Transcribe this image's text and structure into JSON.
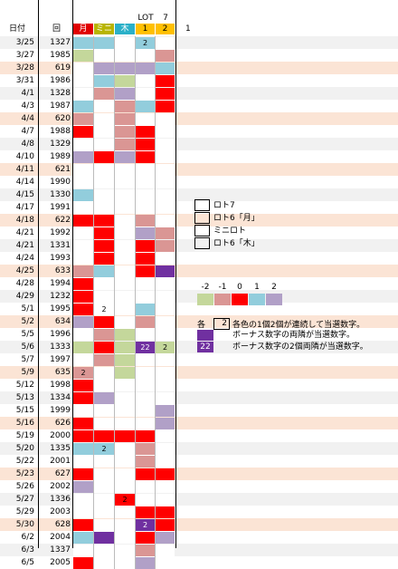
{
  "header": {
    "date_label": "日付",
    "round_label": "回",
    "columns": [
      "月",
      "ミニ",
      "木",
      "1",
      "2"
    ],
    "column_colors": [
      "#e00000",
      "#b8b400",
      "#2ab0c8",
      "#ffc000",
      "#ffc000"
    ],
    "lot_label": "LOT",
    "seven_label": "7",
    "extra_col_label": "1"
  },
  "colors": {
    "0": "#ffffff",
    "1": "#ff0000",
    "2": "#da9694",
    "3": "#c4d79b",
    "4": "#92cddc",
    "5": "#b1a0c7",
    "6": "#7030a0"
  },
  "rows": [
    {
      "date": "3/25",
      "round": "1327",
      "hl": false,
      "cells": [
        [
          4,
          ""
        ],
        [
          4,
          ""
        ],
        [
          0,
          ""
        ],
        [
          4,
          "2"
        ],
        [
          0,
          ""
        ]
      ]
    },
    {
      "date": "3/27",
      "round": "1985",
      "hl": false,
      "cells": [
        [
          3,
          ""
        ],
        [
          0,
          ""
        ],
        [
          0,
          ""
        ],
        [
          0,
          ""
        ],
        [
          2,
          ""
        ]
      ]
    },
    {
      "date": "3/28",
      "round": "619",
      "hl": true,
      "cells": [
        [
          0,
          ""
        ],
        [
          5,
          ""
        ],
        [
          5,
          ""
        ],
        [
          5,
          ""
        ],
        [
          4,
          ""
        ]
      ]
    },
    {
      "date": "3/31",
      "round": "1986",
      "hl": false,
      "cells": [
        [
          0,
          ""
        ],
        [
          4,
          ""
        ],
        [
          3,
          ""
        ],
        [
          0,
          ""
        ],
        [
          1,
          ""
        ]
      ]
    },
    {
      "date": "4/1",
      "round": "1328",
      "hl": false,
      "cells": [
        [
          0,
          ""
        ],
        [
          2,
          ""
        ],
        [
          5,
          ""
        ],
        [
          0,
          ""
        ],
        [
          1,
          ""
        ]
      ]
    },
    {
      "date": "4/3",
      "round": "1987",
      "hl": false,
      "cells": [
        [
          4,
          ""
        ],
        [
          0,
          ""
        ],
        [
          2,
          ""
        ],
        [
          4,
          ""
        ],
        [
          1,
          ""
        ]
      ]
    },
    {
      "date": "4/4",
      "round": "620",
      "hl": true,
      "cells": [
        [
          2,
          ""
        ],
        [
          0,
          ""
        ],
        [
          2,
          ""
        ],
        [
          0,
          ""
        ],
        [
          0,
          ""
        ]
      ]
    },
    {
      "date": "4/7",
      "round": "1988",
      "hl": false,
      "cells": [
        [
          1,
          ""
        ],
        [
          0,
          ""
        ],
        [
          2,
          ""
        ],
        [
          1,
          ""
        ],
        [
          0,
          ""
        ]
      ]
    },
    {
      "date": "4/8",
      "round": "1329",
      "hl": false,
      "cells": [
        [
          0,
          ""
        ],
        [
          0,
          ""
        ],
        [
          2,
          ""
        ],
        [
          1,
          ""
        ],
        [
          0,
          ""
        ]
      ]
    },
    {
      "date": "4/10",
      "round": "1989",
      "hl": false,
      "cells": [
        [
          5,
          ""
        ],
        [
          1,
          ""
        ],
        [
          5,
          ""
        ],
        [
          1,
          ""
        ],
        [
          0,
          ""
        ]
      ]
    },
    {
      "date": "4/11",
      "round": "621",
      "hl": true,
      "cells": [
        [
          0,
          ""
        ],
        [
          0,
          ""
        ],
        [
          0,
          ""
        ],
        [
          0,
          ""
        ],
        [
          0,
          ""
        ]
      ]
    },
    {
      "date": "4/14",
      "round": "1990",
      "hl": false,
      "cells": [
        [
          0,
          ""
        ],
        [
          0,
          ""
        ],
        [
          0,
          ""
        ],
        [
          0,
          ""
        ],
        [
          0,
          ""
        ]
      ]
    },
    {
      "date": "4/15",
      "round": "1330",
      "hl": false,
      "cells": [
        [
          4,
          ""
        ],
        [
          0,
          ""
        ],
        [
          0,
          ""
        ],
        [
          0,
          ""
        ],
        [
          0,
          ""
        ]
      ]
    },
    {
      "date": "4/17",
      "round": "1991",
      "hl": false,
      "cells": [
        [
          0,
          ""
        ],
        [
          0,
          ""
        ],
        [
          0,
          ""
        ],
        [
          0,
          ""
        ],
        [
          0,
          ""
        ]
      ]
    },
    {
      "date": "4/18",
      "round": "622",
      "hl": true,
      "cells": [
        [
          1,
          ""
        ],
        [
          1,
          ""
        ],
        [
          0,
          ""
        ],
        [
          2,
          ""
        ],
        [
          0,
          ""
        ]
      ]
    },
    {
      "date": "4/21",
      "round": "1992",
      "hl": false,
      "cells": [
        [
          0,
          ""
        ],
        [
          1,
          ""
        ],
        [
          0,
          ""
        ],
        [
          5,
          ""
        ],
        [
          2,
          ""
        ]
      ]
    },
    {
      "date": "4/21",
      "round": "1331",
      "hl": false,
      "cells": [
        [
          0,
          ""
        ],
        [
          1,
          ""
        ],
        [
          0,
          ""
        ],
        [
          1,
          ""
        ],
        [
          2,
          ""
        ]
      ]
    },
    {
      "date": "4/24",
      "round": "1993",
      "hl": false,
      "cells": [
        [
          0,
          ""
        ],
        [
          1,
          ""
        ],
        [
          0,
          ""
        ],
        [
          1,
          ""
        ],
        [
          0,
          ""
        ]
      ]
    },
    {
      "date": "4/25",
      "round": "633",
      "hl": true,
      "cells": [
        [
          2,
          ""
        ],
        [
          4,
          ""
        ],
        [
          0,
          ""
        ],
        [
          1,
          ""
        ],
        [
          6,
          ""
        ]
      ]
    },
    {
      "date": "4/28",
      "round": "1994",
      "hl": false,
      "cells": [
        [
          1,
          ""
        ],
        [
          0,
          ""
        ],
        [
          0,
          ""
        ],
        [
          0,
          ""
        ],
        [
          0,
          ""
        ]
      ]
    },
    {
      "date": "4/29",
      "round": "1232",
      "hl": false,
      "cells": [
        [
          1,
          ""
        ],
        [
          0,
          ""
        ],
        [
          0,
          ""
        ],
        [
          0,
          ""
        ],
        [
          0,
          ""
        ]
      ]
    },
    {
      "date": "5/1",
      "round": "1995",
      "hl": false,
      "cells": [
        [
          1,
          ""
        ],
        [
          0,
          "2"
        ],
        [
          0,
          ""
        ],
        [
          4,
          ""
        ],
        [
          0,
          ""
        ]
      ]
    },
    {
      "date": "5/2",
      "round": "634",
      "hl": true,
      "cells": [
        [
          5,
          ""
        ],
        [
          1,
          ""
        ],
        [
          0,
          ""
        ],
        [
          2,
          ""
        ],
        [
          0,
          ""
        ]
      ]
    },
    {
      "date": "5/5",
      "round": "1996",
      "hl": false,
      "cells": [
        [
          0,
          ""
        ],
        [
          2,
          ""
        ],
        [
          3,
          ""
        ],
        [
          0,
          ""
        ],
        [
          0,
          ""
        ]
      ]
    },
    {
      "date": "5/6",
      "round": "1333",
      "hl": false,
      "cells": [
        [
          3,
          ""
        ],
        [
          1,
          ""
        ],
        [
          3,
          ""
        ],
        [
          6,
          "22"
        ],
        [
          3,
          "2"
        ]
      ]
    },
    {
      "date": "5/7",
      "round": "1997",
      "hl": false,
      "cells": [
        [
          0,
          ""
        ],
        [
          2,
          ""
        ],
        [
          3,
          ""
        ],
        [
          0,
          ""
        ],
        [
          0,
          ""
        ]
      ]
    },
    {
      "date": "5/9",
      "round": "635",
      "hl": true,
      "cells": [
        [
          2,
          "2"
        ],
        [
          0,
          ""
        ],
        [
          3,
          ""
        ],
        [
          0,
          ""
        ],
        [
          0,
          ""
        ]
      ]
    },
    {
      "date": "5/12",
      "round": "1998",
      "hl": false,
      "cells": [
        [
          1,
          ""
        ],
        [
          0,
          ""
        ],
        [
          0,
          ""
        ],
        [
          0,
          ""
        ],
        [
          0,
          ""
        ]
      ]
    },
    {
      "date": "5/13",
      "round": "1334",
      "hl": false,
      "cells": [
        [
          1,
          ""
        ],
        [
          5,
          ""
        ],
        [
          0,
          ""
        ],
        [
          0,
          ""
        ],
        [
          0,
          ""
        ]
      ]
    },
    {
      "date": "5/15",
      "round": "1999",
      "hl": false,
      "cells": [
        [
          0,
          ""
        ],
        [
          0,
          ""
        ],
        [
          0,
          ""
        ],
        [
          0,
          ""
        ],
        [
          5,
          ""
        ]
      ]
    },
    {
      "date": "5/16",
      "round": "626",
      "hl": true,
      "cells": [
        [
          1,
          ""
        ],
        [
          0,
          ""
        ],
        [
          0,
          ""
        ],
        [
          0,
          ""
        ],
        [
          5,
          ""
        ]
      ]
    },
    {
      "date": "5/19",
      "round": "2000",
      "hl": false,
      "cells": [
        [
          1,
          ""
        ],
        [
          1,
          ""
        ],
        [
          1,
          ""
        ],
        [
          1,
          ""
        ],
        [
          0,
          ""
        ]
      ]
    },
    {
      "date": "5/20",
      "round": "1335",
      "hl": false,
      "cells": [
        [
          4,
          ""
        ],
        [
          4,
          "2"
        ],
        [
          0,
          ""
        ],
        [
          2,
          ""
        ],
        [
          0,
          ""
        ]
      ]
    },
    {
      "date": "5/22",
      "round": "2001",
      "hl": false,
      "cells": [
        [
          0,
          ""
        ],
        [
          0,
          ""
        ],
        [
          0,
          ""
        ],
        [
          2,
          ""
        ],
        [
          0,
          ""
        ]
      ]
    },
    {
      "date": "5/23",
      "round": "627",
      "hl": true,
      "cells": [
        [
          1,
          ""
        ],
        [
          0,
          ""
        ],
        [
          0,
          ""
        ],
        [
          1,
          ""
        ],
        [
          1,
          ""
        ]
      ]
    },
    {
      "date": "5/26",
      "round": "2002",
      "hl": false,
      "cells": [
        [
          5,
          ""
        ],
        [
          0,
          ""
        ],
        [
          0,
          ""
        ],
        [
          0,
          ""
        ],
        [
          0,
          ""
        ]
      ]
    },
    {
      "date": "5/27",
      "round": "1336",
      "hl": false,
      "cells": [
        [
          0,
          ""
        ],
        [
          0,
          ""
        ],
        [
          1,
          "2"
        ],
        [
          0,
          ""
        ],
        [
          0,
          ""
        ]
      ]
    },
    {
      "date": "5/29",
      "round": "2003",
      "hl": false,
      "cells": [
        [
          0,
          ""
        ],
        [
          0,
          ""
        ],
        [
          0,
          ""
        ],
        [
          1,
          ""
        ],
        [
          1,
          ""
        ]
      ]
    },
    {
      "date": "5/30",
      "round": "628",
      "hl": true,
      "cells": [
        [
          1,
          ""
        ],
        [
          0,
          ""
        ],
        [
          0,
          ""
        ],
        [
          6,
          "2"
        ],
        [
          1,
          ""
        ]
      ]
    },
    {
      "date": "6/2",
      "round": "2004",
      "hl": false,
      "cells": [
        [
          4,
          ""
        ],
        [
          6,
          ""
        ],
        [
          0,
          ""
        ],
        [
          1,
          ""
        ],
        [
          5,
          ""
        ]
      ]
    },
    {
      "date": "6/3",
      "round": "1337",
      "hl": false,
      "cells": [
        [
          0,
          ""
        ],
        [
          0,
          ""
        ],
        [
          0,
          ""
        ],
        [
          2,
          ""
        ],
        [
          0,
          ""
        ]
      ]
    },
    {
      "date": "6/5",
      "round": "2005",
      "hl": false,
      "cells": [
        [
          1,
          ""
        ],
        [
          0,
          ""
        ],
        [
          0,
          ""
        ],
        [
          5,
          ""
        ],
        [
          0,
          ""
        ]
      ]
    }
  ],
  "legend": {
    "items": [
      "ロト7",
      "ロト6「月」",
      "ミニロト",
      "ロト6「木」"
    ]
  },
  "scale": {
    "labels": [
      "-2",
      "-1",
      "0",
      "1",
      "2"
    ],
    "colors": [
      "#c4d79b",
      "#da9694",
      "#ff0000",
      "#92cddc",
      "#b1a0c7"
    ]
  },
  "notes": {
    "prefix": "各",
    "box_value": "2",
    "line1": "各色の1個2個が連続して当選数字。",
    "line2": "ボーナス数字の両隣が当選数字。",
    "line3_value": "22",
    "line3": "ボーナス数字の2個両隣が当選数字。"
  }
}
